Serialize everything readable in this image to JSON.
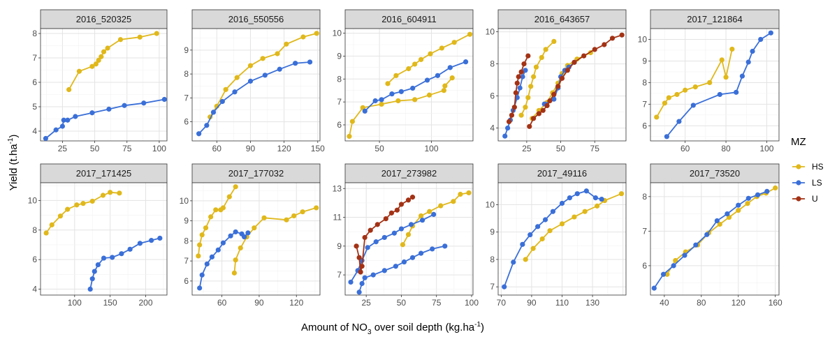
{
  "chart_data": {
    "type": "line",
    "ylabel_main": "Yield (t.ha",
    "ylabel_sup": "-1",
    "ylabel_end": ")",
    "xlabel_main": "Amount of NO",
    "xlabel_sub": "3",
    "xlabel_mid": " over soil depth (kg.ha",
    "xlabel_sup": "-1",
    "xlabel_end": ")",
    "legend": {
      "title": "MZ",
      "position": "right",
      "entries": [
        {
          "name": "HS",
          "color": "#E0B81B"
        },
        {
          "name": "LS",
          "color": "#3A6FD8"
        },
        {
          "name": "U",
          "color": "#A33215"
        }
      ]
    },
    "grid": true,
    "panels": [
      {
        "title": "2016_520325",
        "xlim": [
          8,
          106
        ],
        "ylim": [
          3.6,
          8.2
        ],
        "xticks": [
          25,
          50,
          75,
          100
        ],
        "yticks": [
          4,
          5,
          6,
          7,
          8
        ],
        "series": [
          {
            "mz": "HS",
            "x": [
              30,
              38,
              48,
              51,
              53,
              55,
              57,
              60,
              70,
              85,
              98
            ],
            "y": [
              5.7,
              6.45,
              6.65,
              6.75,
              6.9,
              7.05,
              7.25,
              7.4,
              7.75,
              7.85,
              8.0
            ]
          },
          {
            "mz": "LS",
            "x": [
              12,
              20,
              25,
              26,
              29,
              35,
              48,
              61,
              73,
              88,
              104
            ],
            "y": [
              3.7,
              4.05,
              4.2,
              4.45,
              4.45,
              4.6,
              4.75,
              4.9,
              5.05,
              5.15,
              5.3
            ]
          }
        ]
      },
      {
        "title": "2016_550556",
        "xlim": [
          38,
          152
        ],
        "ylim": [
          5.2,
          9.9
        ],
        "xticks": [
          60,
          90,
          120,
          150
        ],
        "yticks": [
          6,
          7,
          8,
          9
        ],
        "series": [
          {
            "mz": "HS",
            "x": [
              54,
              60,
              68,
              78,
              90,
              101,
              114,
              122,
              137,
              149
            ],
            "y": [
              6.2,
              6.65,
              7.35,
              7.85,
              8.35,
              8.65,
              8.85,
              9.25,
              9.55,
              9.7
            ]
          },
          {
            "mz": "LS",
            "x": [
              44,
              51,
              57,
              65,
              76,
              90,
              103,
              116,
              130,
              143
            ],
            "y": [
              5.5,
              5.85,
              6.4,
              6.85,
              7.25,
              7.7,
              7.95,
              8.2,
              8.45,
              8.5
            ]
          }
        ]
      },
      {
        "title": "2016_604911",
        "xlim": [
          17,
          140
        ],
        "ylim": [
          5.3,
          10.2
        ],
        "xticks": [
          50,
          100
        ],
        "yticks": [
          6,
          7,
          8,
          9,
          10
        ],
        "series": [
          {
            "mz": "HS",
            "x": [
              21,
              24,
              34,
              52,
              68,
              84,
              98,
              112,
              113,
              120
            ],
            "y": [
              5.5,
              6.15,
              6.75,
              6.9,
              7.05,
              7.1,
              7.3,
              7.5,
              7.7,
              8.05
            ]
          },
          {
            "mz": "HS",
            "x": [
              58,
              66,
              78,
              84,
              90,
              99,
              110,
              122,
              137
            ],
            "y": [
              7.8,
              8.15,
              8.45,
              8.65,
              8.85,
              9.1,
              9.35,
              9.6,
              9.95
            ]
          },
          {
            "mz": "LS",
            "x": [
              36,
              46,
              52,
              62,
              71,
              82,
              96,
              106,
              118,
              133
            ],
            "y": [
              6.6,
              7.05,
              7.1,
              7.35,
              7.45,
              7.6,
              7.95,
              8.15,
              8.5,
              8.75
            ]
          }
        ]
      },
      {
        "title": "2016_643657",
        "xlim": [
          4,
          98
        ],
        "ylim": [
          3.2,
          10.2
        ],
        "xticks": [
          25,
          50,
          75
        ],
        "yticks": [
          4,
          6,
          8,
          10
        ],
        "series": [
          {
            "mz": "HS",
            "x": [
              21,
              24,
              26,
              28,
              30,
              32,
              36,
              39,
              45
            ],
            "y": [
              4.8,
              5.3,
              5.9,
              6.6,
              7.2,
              7.8,
              8.4,
              8.9,
              9.4
            ]
          },
          {
            "mz": "HS",
            "x": [
              29,
              34,
              40,
              44,
              48,
              51,
              55,
              62,
              72
            ],
            "y": [
              4.6,
              5.1,
              5.6,
              6.2,
              6.8,
              7.4,
              7.9,
              8.3,
              8.7
            ]
          },
          {
            "mz": "LS",
            "x": [
              9,
              11,
              13,
              15,
              18,
              20,
              22,
              24
            ],
            "y": [
              3.5,
              4.0,
              4.5,
              5.1,
              5.9,
              6.5,
              7.2,
              7.6
            ]
          },
          {
            "mz": "LS",
            "x": [
              38,
              45,
              48,
              50,
              53,
              56,
              60
            ],
            "y": [
              5.5,
              5.8,
              6.5,
              7.2,
              7.6,
              7.8,
              8.1
            ]
          },
          {
            "mz": "U",
            "x": [
              12,
              14,
              16,
              17,
              18,
              19,
              21,
              23,
              26
            ],
            "y": [
              4.4,
              4.8,
              5.3,
              6.2,
              6.8,
              7.2,
              7.5,
              8.0,
              8.5
            ]
          },
          {
            "mz": "U",
            "x": [
              27,
              30,
              34,
              37,
              40,
              42,
              45,
              48,
              51,
              55,
              60,
              67,
              75,
              82,
              88,
              95
            ],
            "y": [
              4.1,
              4.6,
              4.9,
              5.1,
              5.4,
              5.7,
              6.1,
              6.6,
              7.1,
              7.6,
              8.1,
              8.5,
              8.9,
              9.2,
              9.6,
              9.8
            ]
          }
        ]
      },
      {
        "title": "2017_121864",
        "xlim": [
          43,
          106
        ],
        "ylim": [
          5.3,
          10.5
        ],
        "xticks": [
          60,
          80,
          100
        ],
        "yticks": [
          6,
          7,
          8,
          9,
          10
        ],
        "series": [
          {
            "mz": "HS",
            "x": [
              46,
              50,
              52,
              56,
              60,
              65,
              72,
              78,
              80,
              83
            ],
            "y": [
              6.4,
              7.05,
              7.3,
              7.45,
              7.65,
              7.8,
              8.0,
              9.05,
              8.25,
              9.55
            ]
          },
          {
            "mz": "LS",
            "x": [
              51,
              57,
              64,
              77,
              85,
              88,
              91,
              93,
              97,
              102
            ],
            "y": [
              5.5,
              6.2,
              6.95,
              7.45,
              7.55,
              8.3,
              8.95,
              9.45,
              10.0,
              10.3
            ]
          }
        ]
      },
      {
        "title": "2017_171425",
        "xlim": [
          52,
          230
        ],
        "ylim": [
          3.6,
          11.2
        ],
        "xticks": [
          100,
          150,
          200
        ],
        "yticks": [
          4,
          6,
          8,
          10
        ],
        "series": [
          {
            "mz": "HS",
            "x": [
              60,
              68,
              80,
              90,
              103,
              112,
              125,
              140,
              150,
              163
            ],
            "y": [
              7.8,
              8.35,
              8.95,
              9.4,
              9.7,
              9.8,
              9.95,
              10.35,
              10.55,
              10.5
            ]
          },
          {
            "mz": "LS",
            "x": [
              122,
              125,
              128,
              133,
              141,
              153,
              166,
              178,
              192,
              208,
              220
            ],
            "y": [
              4.0,
              4.7,
              5.2,
              5.65,
              6.1,
              6.15,
              6.4,
              6.7,
              7.1,
              7.3,
              7.45
            ]
          }
        ]
      },
      {
        "title": "2017_177032",
        "xlim": [
          36,
          139
        ],
        "ylim": [
          5.3,
          10.9
        ],
        "xticks": [
          60,
          90,
          120
        ],
        "yticks": [
          6,
          7,
          8,
          9,
          10
        ],
        "series": [
          {
            "mz": "HS",
            "x": [
              41,
              42,
              44,
              47,
              51,
              55,
              59,
              61,
              66,
              71
            ],
            "y": [
              7.25,
              7.8,
              8.3,
              8.65,
              9.2,
              9.55,
              9.55,
              9.65,
              10.2,
              10.7
            ]
          },
          {
            "mz": "HS",
            "x": [
              70,
              71,
              75,
              80,
              86,
              94,
              112,
              118,
              125,
              136
            ],
            "y": [
              6.4,
              7.05,
              7.65,
              8.2,
              8.65,
              9.15,
              9.05,
              9.25,
              9.45,
              9.65
            ]
          },
          {
            "mz": "LS",
            "x": [
              42,
              44,
              48,
              52,
              57,
              61,
              67,
              71,
              76,
              78,
              81
            ],
            "y": [
              5.65,
              6.3,
              6.85,
              7.2,
              7.55,
              7.9,
              8.25,
              8.45,
              8.35,
              8.2,
              8.4
            ]
          }
        ]
      },
      {
        "title": "2017_273982",
        "xlim": [
          10,
          101
        ],
        "ylim": [
          5.6,
          13.4
        ],
        "xticks": [
          25,
          50,
          75,
          100
        ],
        "yticks": [
          7,
          9,
          11,
          13
        ],
        "series": [
          {
            "mz": "HS",
            "x": [
              51,
              55,
              58,
              64,
              70,
              78,
              87,
              92,
              98
            ],
            "y": [
              9.1,
              9.8,
              10.4,
              11.1,
              11.4,
              11.8,
              12.1,
              12.6,
              12.7
            ]
          },
          {
            "mz": "LS",
            "x": [
              14,
              19,
              22,
              26,
              32,
              38,
              45,
              50,
              57,
              65,
              73
            ],
            "y": [
              6.5,
              7.3,
              8.0,
              8.9,
              9.3,
              9.6,
              9.9,
              10.2,
              10.5,
              10.8,
              11.2
            ]
          },
          {
            "mz": "LS",
            "x": [
              20,
              22,
              24,
              30,
              38,
              46,
              52,
              58,
              64,
              72,
              81
            ],
            "y": [
              5.8,
              6.4,
              6.8,
              7.0,
              7.3,
              7.6,
              7.9,
              8.2,
              8.5,
              8.8,
              9.0
            ]
          },
          {
            "mz": "U",
            "x": [
              18,
              20,
              21,
              22,
              24,
              28,
              33,
              39,
              43,
              47,
              50,
              55,
              58
            ],
            "y": [
              9.0,
              8.2,
              7.2,
              7.6,
              9.6,
              10.1,
              10.5,
              10.9,
              11.3,
              11.5,
              11.9,
              12.2,
              12.4
            ]
          }
        ]
      },
      {
        "title": "2017_49116",
        "xlim": [
          68,
          152
        ],
        "ylim": [
          6.7,
          10.8
        ],
        "xticks": [
          70,
          90,
          110,
          130
        ],
        "yticks": [
          7,
          8,
          9,
          10
        ],
        "series": [
          {
            "mz": "HS",
            "x": [
              86,
              91,
              97,
              102,
              110,
              118,
              125,
              133,
              138,
              149
            ],
            "y": [
              8.0,
              8.4,
              8.75,
              9.05,
              9.3,
              9.55,
              9.75,
              9.95,
              10.15,
              10.4
            ]
          },
          {
            "mz": "LS",
            "x": [
              72,
              78,
              84,
              89,
              94,
              99,
              104,
              110,
              115,
              120,
              126,
              132,
              136
            ],
            "y": [
              7.0,
              7.9,
              8.55,
              8.9,
              9.2,
              9.45,
              9.75,
              10.05,
              10.25,
              10.4,
              10.5,
              10.25,
              10.2
            ]
          }
        ]
      },
      {
        "title": "2017_73520",
        "xlim": [
          25,
          164
        ],
        "ylim": [
          5.15,
          8.4
        ],
        "xticks": [
          40,
          80,
          120,
          160
        ],
        "yticks": [
          6,
          7,
          8
        ],
        "series": [
          {
            "mz": "HS",
            "x": [
              43,
              52,
              63,
              76,
              88,
              100,
              110,
              120,
              130,
              140,
              150,
              160
            ],
            "y": [
              5.75,
              6.15,
              6.4,
              6.6,
              6.95,
              7.2,
              7.4,
              7.6,
              7.8,
              8.0,
              8.1,
              8.25
            ]
          },
          {
            "mz": "LS",
            "x": [
              29,
              39,
              50,
              62,
              74,
              86,
              97,
              108,
              120,
              131,
              141,
              151
            ],
            "y": [
              5.35,
              5.75,
              6.0,
              6.3,
              6.6,
              6.9,
              7.3,
              7.5,
              7.75,
              7.95,
              8.05,
              8.15
            ]
          }
        ]
      }
    ]
  }
}
